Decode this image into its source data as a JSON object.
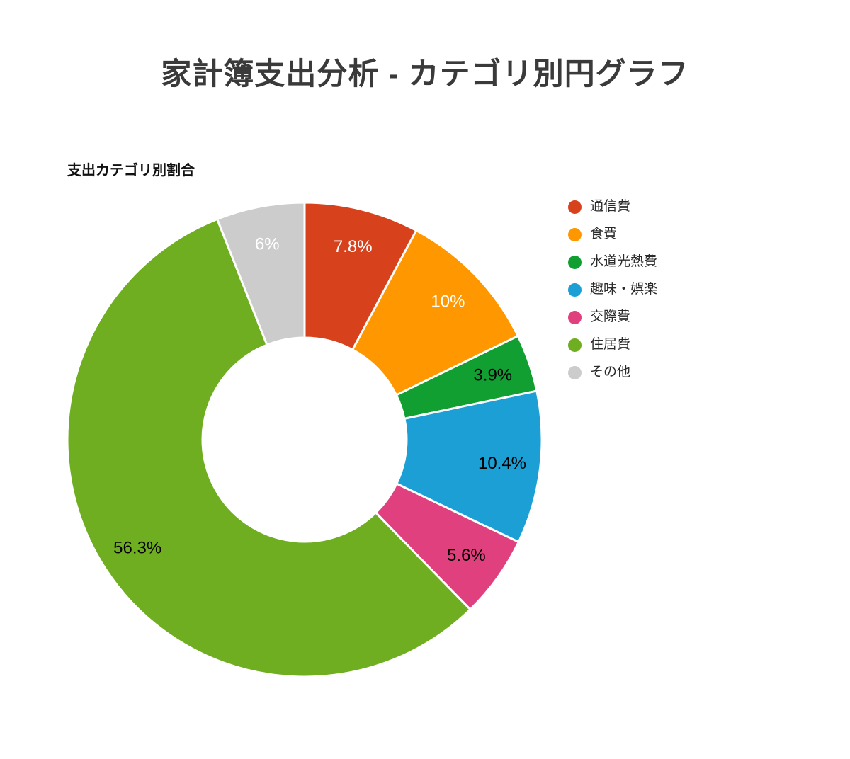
{
  "page": {
    "title": "家計簿支出分析 - カテゴリ別円グラフ",
    "chart_title": "支出カテゴリ別割合"
  },
  "chart_data": {
    "type": "pie",
    "subtype": "donut",
    "title": "支出カテゴリ別割合",
    "legend_position": "right",
    "start_angle_deg": 0,
    "direction": "clockwise",
    "categories": [
      "通信費",
      "食費",
      "水道光熱費",
      "趣味・娯楽",
      "交際費",
      "住居費",
      "その他"
    ],
    "values": [
      7.8,
      10,
      3.9,
      10.4,
      5.6,
      56.3,
      6
    ],
    "value_labels": [
      "7.8%",
      "10%",
      "3.9%",
      "10.4%",
      "5.6%",
      "56.3%",
      "6%"
    ],
    "colors": [
      "#d7421d",
      "#ff9800",
      "#129f32",
      "#1b9fd5",
      "#e0417e",
      "#6fae20",
      "#cccccc"
    ],
    "label_colors": [
      "#ffffff",
      "#ffffff",
      "#000000",
      "#000000",
      "#000000",
      "#000000",
      "#ffffff"
    ],
    "slice_border_color": "#ffffff"
  }
}
